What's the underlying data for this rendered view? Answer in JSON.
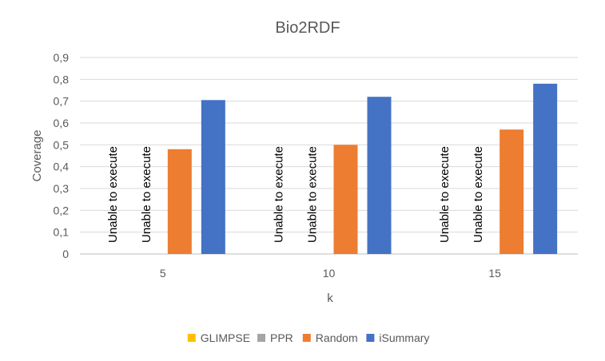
{
  "chart_data": {
    "type": "bar",
    "title": "Bio2RDF",
    "xlabel": "k",
    "ylabel": "Coverage",
    "categories": [
      "5",
      "10",
      "15"
    ],
    "ylim": [
      0,
      0.9
    ],
    "yticks": [
      "0",
      "0,1",
      "0,2",
      "0,3",
      "0,4",
      "0,5",
      "0,6",
      "0,7",
      "0,8",
      "0,9"
    ],
    "grid": true,
    "legend_position": "bottom",
    "series": [
      {
        "name": "GLIMPSE",
        "color": "#ffc000",
        "values": [
          null,
          null,
          null
        ],
        "annotations": [
          "Unable to execute",
          "Unable to execute",
          "Unable to execute"
        ]
      },
      {
        "name": "PPR",
        "color": "#a5a5a5",
        "values": [
          null,
          null,
          null
        ],
        "annotations": [
          "Unable to execute",
          "Unable to execute",
          "Unable to execute"
        ]
      },
      {
        "name": "Random",
        "color": "#ed7d31",
        "values": [
          0.48,
          0.5,
          0.57
        ]
      },
      {
        "name": "iSummary",
        "color": "#4472c4",
        "values": [
          0.705,
          0.72,
          0.78
        ]
      }
    ]
  }
}
